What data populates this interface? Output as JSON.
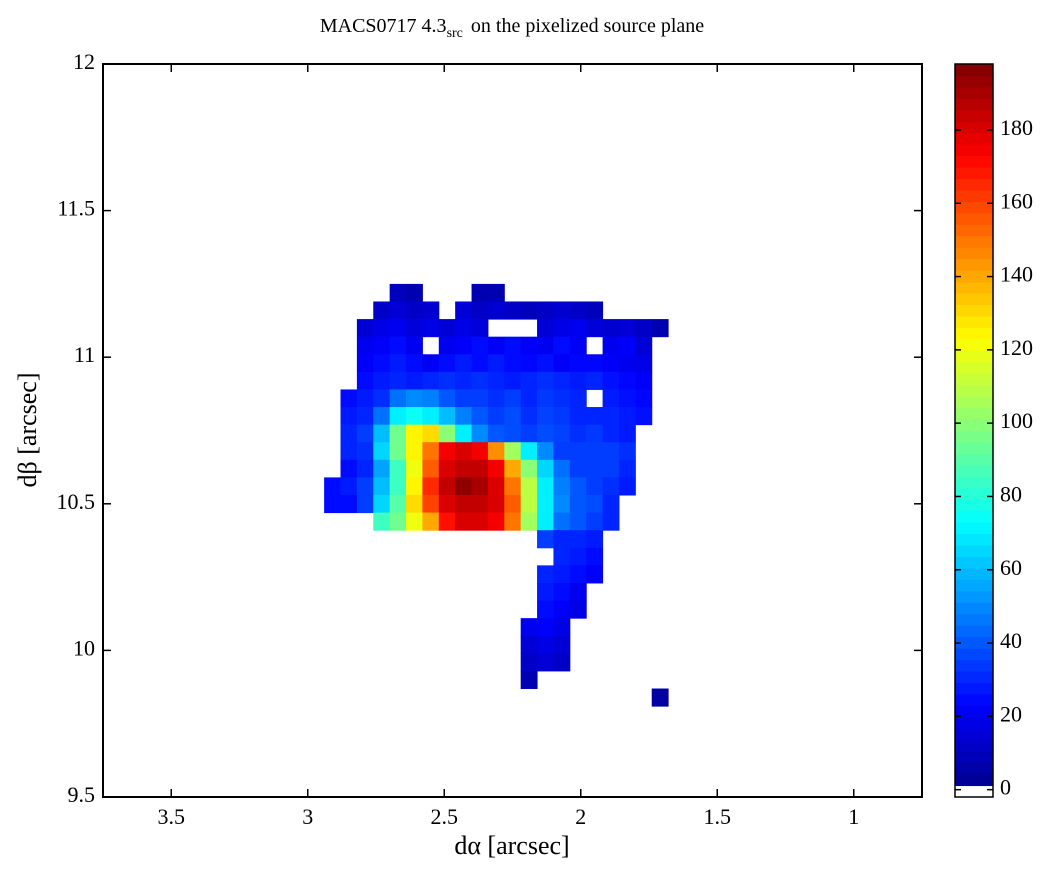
{
  "chart_data": {
    "type": "heatmap",
    "title": "MACS0717 4.3",
    "title_subscript": "src",
    "title_suffix": "on the pixelized source plane",
    "x_label": "dα [arcsec]",
    "y_label": "dβ [arcsec]",
    "xlim": [
      3.75,
      0.75
    ],
    "ylim": [
      9.5,
      12
    ],
    "xticks": [
      3.5,
      3,
      2.5,
      2,
      1.5,
      1
    ],
    "yticks": [
      9.5,
      10,
      10.5,
      11,
      11.5,
      12
    ],
    "colormap": "jet",
    "clim": [
      -2,
      198
    ],
    "colorbar_ticks": [
      0,
      20,
      40,
      60,
      80,
      100,
      120,
      140,
      160,
      180
    ],
    "x": [
      2.91,
      2.85,
      2.79,
      2.73,
      2.67,
      2.61,
      2.55,
      2.49,
      2.43,
      2.37,
      2.31,
      2.25,
      2.19,
      2.13,
      2.07,
      2.01,
      1.95,
      1.89,
      1.83,
      1.77,
      1.71
    ],
    "y": [
      11.22,
      11.16,
      11.1,
      11.04,
      10.98,
      10.92,
      10.86,
      10.8,
      10.74,
      10.68,
      10.62,
      10.56,
      10.5,
      10.44,
      10.38,
      10.32,
      10.26,
      10.2,
      10.14,
      10.08,
      10.02,
      9.96,
      9.9,
      9.84
    ],
    "z": [
      [
        null,
        null,
        null,
        null,
        10,
        8,
        null,
        null,
        null,
        8,
        8,
        null,
        null,
        null,
        null,
        null,
        null,
        null,
        null,
        null,
        null
      ],
      [
        null,
        null,
        null,
        12,
        15,
        12,
        14,
        null,
        15,
        12,
        14,
        12,
        10,
        12,
        14,
        12,
        10,
        null,
        null,
        null,
        null
      ],
      [
        null,
        null,
        15,
        18,
        20,
        16,
        18,
        15,
        18,
        16,
        null,
        null,
        null,
        15,
        18,
        20,
        16,
        14,
        15,
        12,
        8
      ],
      [
        null,
        null,
        20,
        22,
        25,
        20,
        null,
        20,
        22,
        25,
        22,
        25,
        22,
        20,
        25,
        22,
        null,
        20,
        22,
        15,
        null
      ],
      [
        null,
        null,
        22,
        25,
        28,
        25,
        22,
        25,
        28,
        25,
        28,
        25,
        24,
        26,
        22,
        24,
        24,
        22,
        20,
        18,
        null
      ],
      [
        null,
        null,
        25,
        28,
        30,
        28,
        30,
        32,
        30,
        32,
        30,
        28,
        30,
        32,
        30,
        28,
        30,
        26,
        24,
        22,
        null
      ],
      [
        null,
        25,
        28,
        32,
        45,
        50,
        48,
        40,
        35,
        35,
        32,
        35,
        30,
        34,
        32,
        30,
        null,
        28,
        26,
        24,
        null
      ],
      [
        null,
        28,
        30,
        45,
        70,
        75,
        70,
        60,
        48,
        40,
        35,
        38,
        32,
        36,
        34,
        30,
        30,
        30,
        28,
        26,
        null
      ],
      [
        null,
        30,
        35,
        60,
        95,
        125,
        130,
        100,
        70,
        50,
        40,
        38,
        35,
        38,
        36,
        32,
        34,
        30,
        28,
        null,
        null
      ],
      [
        null,
        30,
        32,
        65,
        95,
        125,
        150,
        175,
        180,
        175,
        145,
        105,
        70,
        50,
        35,
        35,
        35,
        35,
        32,
        null,
        null
      ],
      [
        null,
        25,
        30,
        55,
        85,
        120,
        155,
        180,
        185,
        185,
        175,
        140,
        100,
        65,
        45,
        35,
        35,
        35,
        30,
        null,
        null
      ],
      [
        25,
        28,
        35,
        60,
        85,
        125,
        165,
        185,
        195,
        190,
        180,
        150,
        110,
        70,
        48,
        40,
        35,
        32,
        28,
        null,
        null
      ],
      [
        25,
        25,
        35,
        65,
        90,
        130,
        160,
        180,
        185,
        185,
        180,
        155,
        110,
        70,
        50,
        40,
        38,
        30,
        null,
        null,
        null
      ],
      [
        null,
        null,
        null,
        85,
        95,
        120,
        140,
        170,
        180,
        180,
        175,
        150,
        105,
        70,
        45,
        40,
        35,
        30,
        null,
        null,
        null
      ],
      [
        null,
        null,
        null,
        null,
        null,
        null,
        null,
        null,
        null,
        null,
        null,
        null,
        null,
        35,
        30,
        30,
        28,
        null,
        null,
        null,
        null
      ],
      [
        null,
        null,
        null,
        null,
        null,
        null,
        null,
        null,
        null,
        null,
        null,
        null,
        null,
        null,
        30,
        28,
        25,
        null,
        null,
        null,
        null
      ],
      [
        null,
        null,
        null,
        null,
        null,
        null,
        null,
        null,
        null,
        null,
        null,
        null,
        null,
        30,
        28,
        25,
        22,
        null,
        null,
        null,
        null
      ],
      [
        null,
        null,
        null,
        null,
        null,
        null,
        null,
        null,
        null,
        null,
        null,
        null,
        null,
        28,
        25,
        20,
        null,
        null,
        null,
        null,
        null
      ],
      [
        null,
        null,
        null,
        null,
        null,
        null,
        null,
        null,
        null,
        null,
        null,
        null,
        null,
        25,
        22,
        18,
        null,
        null,
        null,
        null,
        null
      ],
      [
        null,
        null,
        null,
        null,
        null,
        null,
        null,
        null,
        null,
        null,
        null,
        null,
        20,
        22,
        18,
        null,
        null,
        null,
        null,
        null,
        null
      ],
      [
        null,
        null,
        null,
        null,
        null,
        null,
        null,
        null,
        null,
        null,
        null,
        null,
        15,
        18,
        15,
        null,
        null,
        null,
        null,
        null,
        null
      ],
      [
        null,
        null,
        null,
        null,
        null,
        null,
        null,
        null,
        null,
        null,
        null,
        null,
        12,
        15,
        12,
        null,
        null,
        null,
        null,
        null,
        null
      ],
      [
        null,
        null,
        null,
        null,
        null,
        null,
        null,
        null,
        null,
        null,
        null,
        null,
        8,
        null,
        null,
        null,
        null,
        null,
        null,
        null,
        null
      ],
      [
        null,
        null,
        null,
        null,
        null,
        null,
        null,
        null,
        null,
        null,
        null,
        null,
        null,
        null,
        null,
        null,
        null,
        null,
        null,
        null,
        5
      ]
    ]
  }
}
